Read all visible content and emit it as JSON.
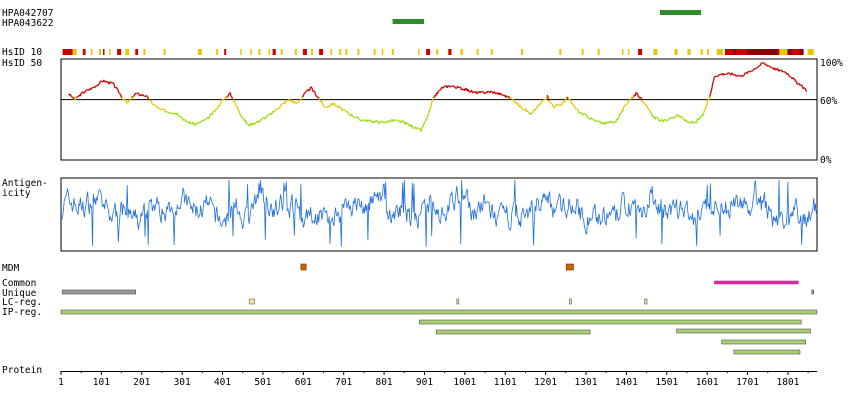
{
  "antibodies": [
    {
      "name": "HPA042707",
      "start": 1484,
      "end": 1586,
      "color": "#2e8b2e"
    },
    {
      "name": "HPA043622",
      "start": 822,
      "end": 900,
      "color": "#2e8b2e"
    }
  ],
  "labels": {
    "hsid10": "HsID 10",
    "hsid50": "HsID 50",
    "antigenicity_line1": "Antigen-",
    "antigenicity_line2": "icity",
    "mdm": "MDM",
    "common": "Common",
    "unique": "Unique",
    "lc_reg": "LC-reg.",
    "ip_reg": "IP-reg.",
    "protein": "Protein"
  },
  "colors": {
    "high": "#cc0000",
    "mid": "#e6c800",
    "low": "#99dd11",
    "antigenicity": "#1f6fdc",
    "mdm": "#c86400",
    "common": "#d42f9f",
    "unique": "#999999",
    "lc_reg": "#f7e3a0",
    "ip_reg": "#a9cf72"
  },
  "chart_data": {
    "type": "line",
    "protein_length": 1873,
    "x_ticks": [
      1,
      101,
      201,
      301,
      401,
      501,
      601,
      701,
      801,
      901,
      1001,
      1101,
      1201,
      1301,
      1401,
      1501,
      1601,
      1701,
      1801
    ],
    "identity_y_ticks": [
      "100%",
      "60%",
      "0%"
    ],
    "identity_threshold": 60,
    "identity_ylim": [
      0,
      100
    ],
    "identity_profile": [
      [
        20,
        66
      ],
      [
        35,
        60
      ],
      [
        55,
        67
      ],
      [
        80,
        72
      ],
      [
        105,
        79
      ],
      [
        130,
        76
      ],
      [
        150,
        64
      ],
      [
        165,
        56
      ],
      [
        185,
        66
      ],
      [
        210,
        64
      ],
      [
        225,
        57
      ],
      [
        245,
        50
      ],
      [
        265,
        48
      ],
      [
        290,
        46
      ],
      [
        310,
        38
      ],
      [
        335,
        35
      ],
      [
        365,
        41
      ],
      [
        385,
        50
      ],
      [
        400,
        59
      ],
      [
        420,
        66
      ],
      [
        435,
        54
      ],
      [
        450,
        42
      ],
      [
        465,
        34
      ],
      [
        490,
        38
      ],
      [
        520,
        45
      ],
      [
        545,
        54
      ],
      [
        565,
        60
      ],
      [
        585,
        56
      ],
      [
        605,
        66
      ],
      [
        620,
        72
      ],
      [
        640,
        61
      ],
      [
        655,
        52
      ],
      [
        675,
        56
      ],
      [
        705,
        48
      ],
      [
        740,
        40
      ],
      [
        770,
        38
      ],
      [
        800,
        37
      ],
      [
        825,
        39
      ],
      [
        850,
        37
      ],
      [
        875,
        32
      ],
      [
        893,
        29
      ],
      [
        910,
        44
      ],
      [
        925,
        63
      ],
      [
        945,
        72
      ],
      [
        965,
        74
      ],
      [
        985,
        72
      ],
      [
        1005,
        70
      ],
      [
        1025,
        67
      ],
      [
        1045,
        67
      ],
      [
        1065,
        68
      ],
      [
        1085,
        66
      ],
      [
        1100,
        64
      ],
      [
        1120,
        60
      ],
      [
        1135,
        54
      ],
      [
        1150,
        50
      ],
      [
        1165,
        45
      ],
      [
        1190,
        57
      ],
      [
        1205,
        63
      ],
      [
        1220,
        53
      ],
      [
        1240,
        55
      ],
      [
        1255,
        62
      ],
      [
        1270,
        54
      ],
      [
        1285,
        47
      ],
      [
        1300,
        44
      ],
      [
        1325,
        38
      ],
      [
        1350,
        36
      ],
      [
        1375,
        38
      ],
      [
        1390,
        48
      ],
      [
        1405,
        58
      ],
      [
        1425,
        66
      ],
      [
        1440,
        60
      ],
      [
        1455,
        50
      ],
      [
        1470,
        42
      ],
      [
        1490,
        38
      ],
      [
        1510,
        41
      ],
      [
        1530,
        44
      ],
      [
        1550,
        38
      ],
      [
        1570,
        36
      ],
      [
        1590,
        44
      ],
      [
        1605,
        60
      ],
      [
        1620,
        84
      ],
      [
        1640,
        86
      ],
      [
        1660,
        86
      ],
      [
        1685,
        84
      ],
      [
        1705,
        88
      ],
      [
        1725,
        93
      ],
      [
        1740,
        97
      ],
      [
        1760,
        93
      ],
      [
        1775,
        90
      ],
      [
        1795,
        88
      ],
      [
        1810,
        83
      ],
      [
        1825,
        76
      ],
      [
        1840,
        72
      ],
      [
        1850,
        68
      ]
    ],
    "hsid10_segments": [
      [
        5,
        30,
        "high"
      ],
      [
        30,
        40,
        "mid"
      ],
      [
        55,
        62,
        "high"
      ],
      [
        75,
        79,
        "mid"
      ],
      [
        95,
        100,
        "mid"
      ],
      [
        105,
        108,
        "high"
      ],
      [
        120,
        123,
        "mid"
      ],
      [
        140,
        150,
        "high"
      ],
      [
        160,
        170,
        "mid"
      ],
      [
        185,
        192,
        "high"
      ],
      [
        205,
        210,
        "mid"
      ],
      [
        255,
        260,
        "mid"
      ],
      [
        340,
        350,
        "mid"
      ],
      [
        385,
        390,
        "mid"
      ],
      [
        405,
        410,
        "high"
      ],
      [
        445,
        447,
        "mid"
      ],
      [
        470,
        473,
        "mid"
      ],
      [
        490,
        495,
        "mid"
      ],
      [
        515,
        518,
        "mid"
      ],
      [
        525,
        533,
        "high"
      ],
      [
        545,
        550,
        "mid"
      ],
      [
        580,
        585,
        "mid"
      ],
      [
        600,
        610,
        "high"
      ],
      [
        620,
        625,
        "mid"
      ],
      [
        640,
        650,
        "high"
      ],
      [
        668,
        672,
        "mid"
      ],
      [
        690,
        695,
        "mid"
      ],
      [
        705,
        710,
        "mid"
      ],
      [
        735,
        740,
        "mid"
      ],
      [
        775,
        780,
        "mid"
      ],
      [
        795,
        798,
        "mid"
      ],
      [
        820,
        825,
        "mid"
      ],
      [
        885,
        887,
        "mid"
      ],
      [
        905,
        915,
        "high"
      ],
      [
        930,
        935,
        "mid"
      ],
      [
        960,
        968,
        "high"
      ],
      [
        990,
        996,
        "mid"
      ],
      [
        1030,
        1035,
        "mid"
      ],
      [
        1065,
        1070,
        "mid"
      ],
      [
        1140,
        1145,
        "mid"
      ],
      [
        1235,
        1240,
        "mid"
      ],
      [
        1290,
        1295,
        "mid"
      ],
      [
        1330,
        1335,
        "mid"
      ],
      [
        1390,
        1392,
        "mid"
      ],
      [
        1405,
        1408,
        "mid"
      ],
      [
        1430,
        1440,
        "high"
      ],
      [
        1468,
        1478,
        "mid"
      ],
      [
        1520,
        1528,
        "mid"
      ],
      [
        1552,
        1560,
        "mid"
      ],
      [
        1585,
        1590,
        "mid"
      ],
      [
        1600,
        1605,
        "mid"
      ],
      [
        1625,
        1640,
        "mid"
      ],
      [
        1645,
        1700,
        "high"
      ],
      [
        1700,
        1780,
        "high"
      ],
      [
        1780,
        1800,
        "mid"
      ],
      [
        1800,
        1840,
        "high"
      ],
      [
        1850,
        1865,
        "mid"
      ]
    ],
    "hsid10_dark_segments": [
      [
        1665,
        1672
      ],
      [
        1700,
        1775
      ],
      [
        1800,
        1810
      ],
      [
        1830,
        1838
      ]
    ],
    "antigenicity_ylim": [
      -3,
      3
    ],
    "antigenicity_seed": 7,
    "mdm": [
      [
        595,
        608
      ],
      [
        1252,
        1270
      ]
    ],
    "common": [
      [
        1619,
        1827
      ]
    ],
    "unique": [
      [
        4,
        186
      ],
      [
        1860,
        1863
      ]
    ],
    "lc_reg": [
      [
        467,
        480
      ],
      [
        981,
        986
      ],
      [
        1260,
        1265
      ],
      [
        1446,
        1452
      ]
    ],
    "ip_reg": [
      [
        1,
        1873
      ],
      [
        888,
        1834
      ],
      [
        930,
        1311
      ],
      [
        1525,
        1857
      ],
      [
        1637,
        1845
      ],
      [
        1667,
        1831
      ]
    ]
  }
}
